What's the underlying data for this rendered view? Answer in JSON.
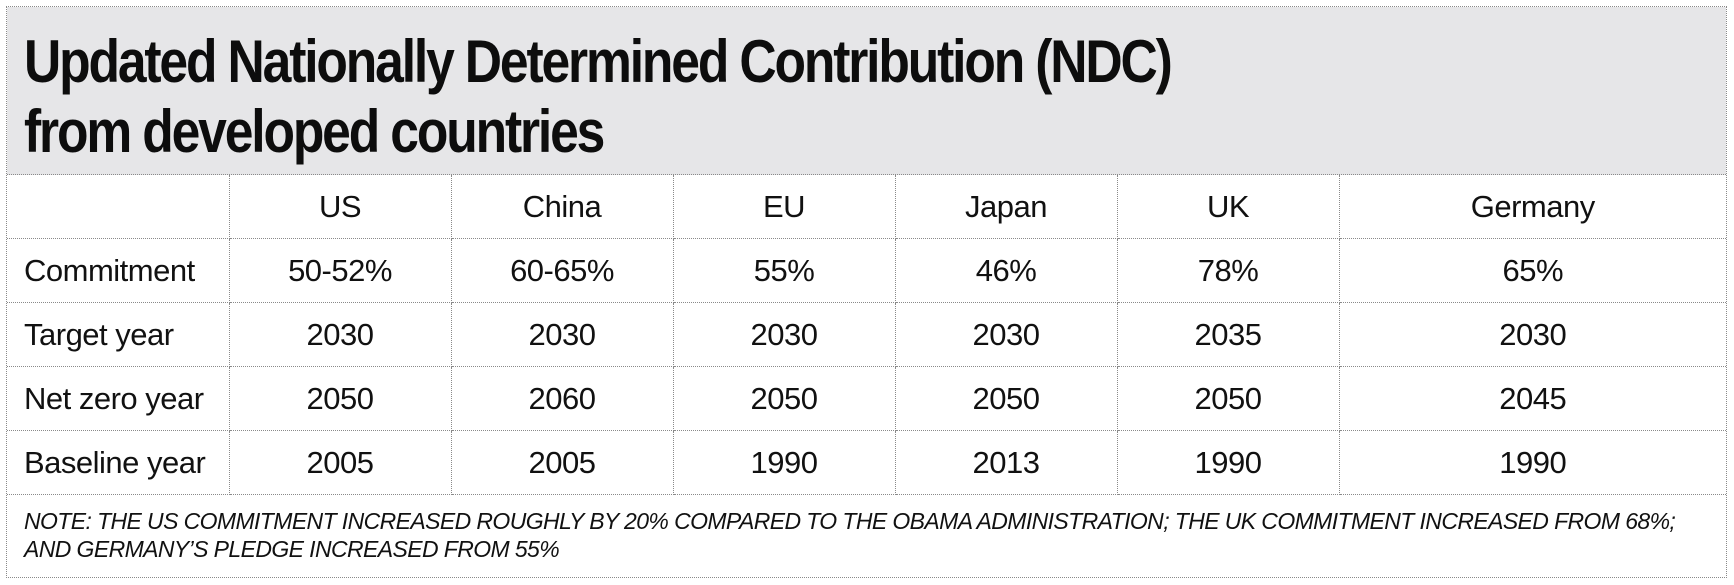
{
  "title": {
    "line1": "Updated Nationally Determined Contribution (NDC)",
    "line2": "from developed countries"
  },
  "chart_data": {
    "type": "table",
    "columns": [
      "",
      "US",
      "China",
      "EU",
      "Japan",
      "UK",
      "Germany"
    ],
    "rows": [
      {
        "label": "Commitment",
        "values": [
          "50-52%",
          "60-65%",
          "55%",
          "46%",
          "78%",
          "65%"
        ]
      },
      {
        "label": "Target year",
        "values": [
          "2030",
          "2030",
          "2030",
          "2030",
          "2035",
          "2030"
        ]
      },
      {
        "label": "Net zero year",
        "values": [
          "2050",
          "2060",
          "2050",
          "2050",
          "2050",
          "2045"
        ]
      },
      {
        "label": "Baseline year",
        "values": [
          "2005",
          "2005",
          "1990",
          "2013",
          "1990",
          "1990"
        ]
      }
    ]
  },
  "note": "NOTE: THE US COMMITMENT INCREASED ROUGHLY BY 20% COMPARED TO THE OBAMA ADMINISTRATION; THE UK COMMITMENT INCREASED FROM 68%; AND GERMANY’S PLEDGE INCREASED FROM 55%",
  "colors": {
    "header_background": "#e6e6e8",
    "text": "#111111",
    "grid_lines": "#8a8a8a"
  }
}
